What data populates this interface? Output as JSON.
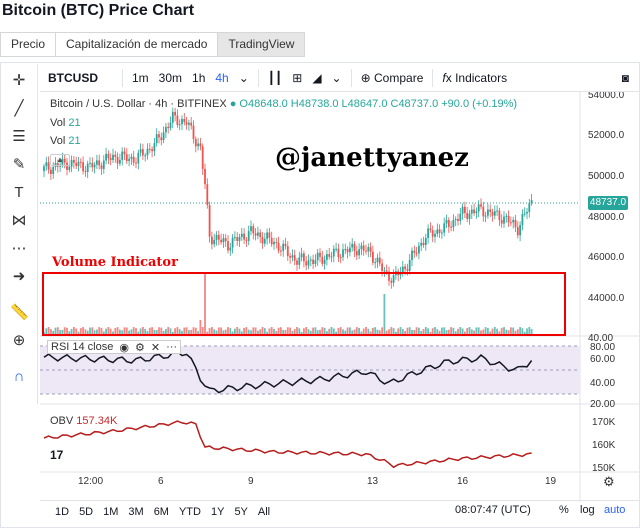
{
  "page": {
    "title": "Bitcoin (BTC) Price Chart"
  },
  "tabs": [
    {
      "label": "Precio"
    },
    {
      "label": "Capitalización de mercado"
    },
    {
      "label": "TradingView"
    }
  ],
  "toolbar": {
    "symbol": "BTCUSD",
    "intervals": [
      "1m",
      "30m",
      "1h",
      "4h"
    ],
    "compare_label": "Compare",
    "indicators_label": "Indicators"
  },
  "legend": {
    "title": "Bitcoin / U.S. Dollar · 4h · BITFINEX",
    "ohlc": "O48648.0  H48738.0  L48647.0  C48737.0  +90.0 (+0.19%)",
    "vol1": "Vol",
    "vol1_value": "21",
    "vol2": "Vol",
    "vol2_value": "21"
  },
  "watermark": "@janettyanez",
  "annotation": {
    "volume_label": "Volume Indicator"
  },
  "rsi": {
    "label": "RSI 14 close"
  },
  "obv": {
    "label": "OBV",
    "value": "157.34K"
  },
  "price_axis": {
    "ticks": [
      "54000.0",
      "52000.0",
      "50000.0",
      "48000.0",
      "46000.0",
      "44000.0",
      "40.00"
    ],
    "last_price": "48737.0"
  },
  "rsi_axis": {
    "ticks": [
      "80.00",
      "60.00",
      "40.00",
      "20.00"
    ]
  },
  "obv_axis": {
    "ticks": [
      "170K",
      "160K",
      "150K"
    ]
  },
  "time_axis": {
    "ticks": [
      "12:00",
      "6",
      "9",
      "13",
      "16",
      "19"
    ]
  },
  "bottombar": {
    "ranges": [
      "1D",
      "5D",
      "1M",
      "3M",
      "6M",
      "YTD",
      "1Y",
      "5Y",
      "All"
    ],
    "time": "08:07:47 (UTC)",
    "percent": "%",
    "log": "log",
    "auto": "auto"
  },
  "colors": {
    "up": "#26a69a",
    "down": "#ef5350",
    "accent": "#2962ff",
    "annotation": "#e00000"
  },
  "icons": [
    "crosshair-icon",
    "trendline-icon",
    "fib-icon",
    "brush-icon",
    "text-icon",
    "pattern-icon",
    "measure-icon",
    "arrow-icon",
    "ruler-icon",
    "zoom-icon",
    "magnet-icon",
    "camera-icon"
  ]
}
